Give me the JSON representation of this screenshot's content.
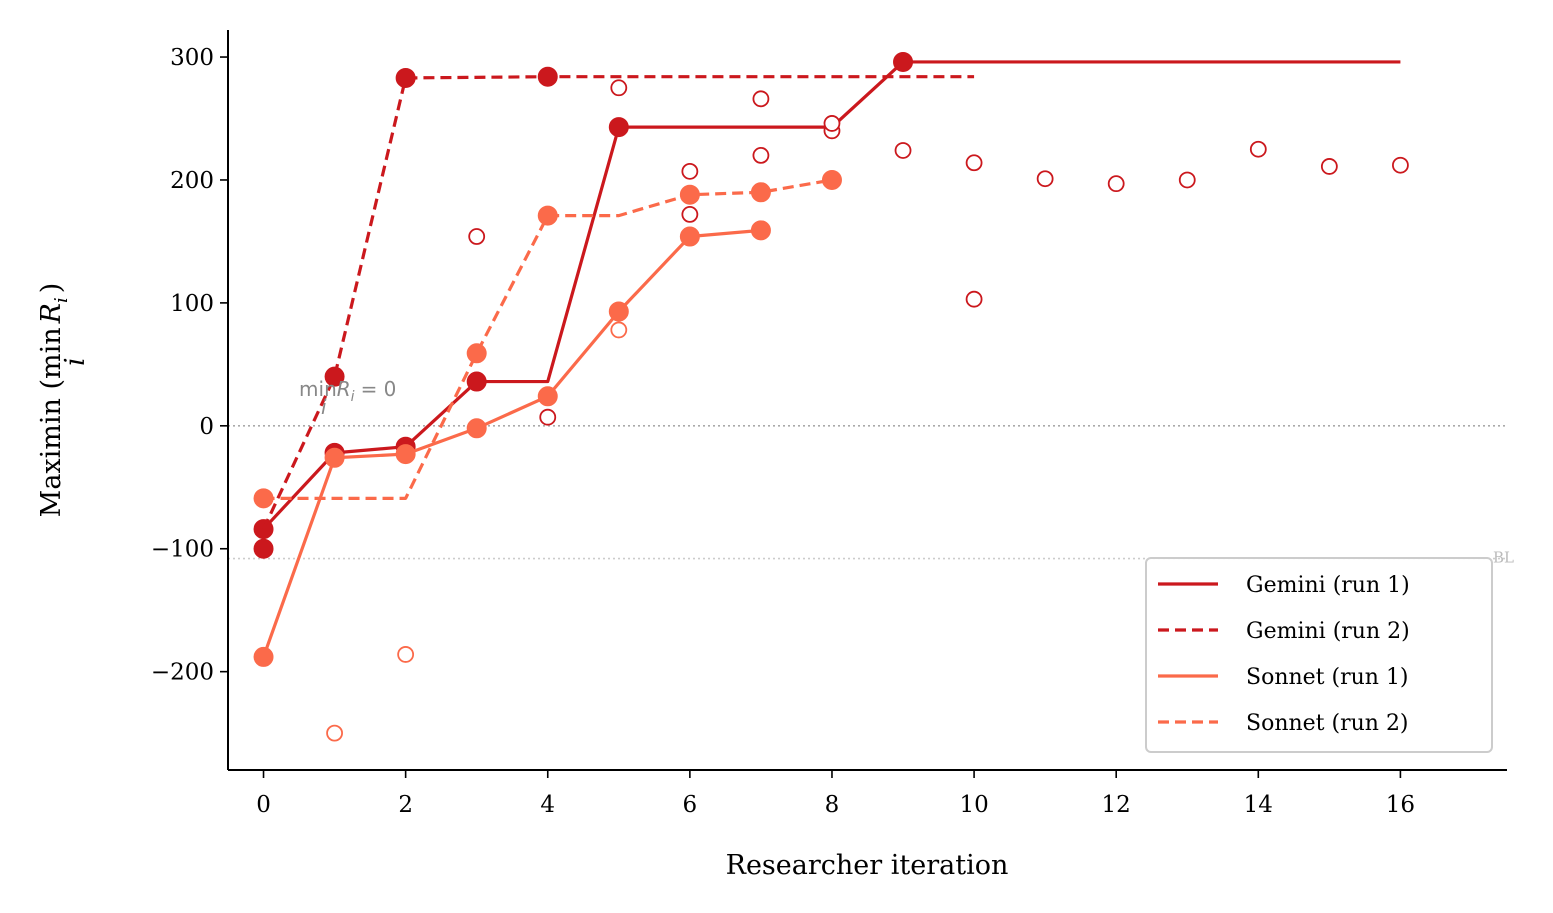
{
  "chart_data": {
    "type": "line",
    "xlabel": "Researcher iteration",
    "ylabel": "Maximin (min R_i)",
    "ylabel_main": "Maximin (min",
    "ylabel_var": "R",
    "ylabel_sub": "i",
    "ylabel_under": "i",
    "ylabel_close": ")",
    "xlim": [
      -0.5,
      17.5
    ],
    "ylim": [
      -280,
      322
    ],
    "xticks": [
      0,
      2,
      4,
      6,
      8,
      10,
      12,
      14,
      16
    ],
    "yticks": [
      -200,
      -100,
      0,
      100,
      200,
      300
    ],
    "grid": false,
    "legend_position": "lower-right",
    "reference_lines": [
      {
        "y": 0,
        "label_main": "min",
        "label_var": "R",
        "label_sub": "i",
        "label_under": "i",
        "label_eq": "= 0",
        "label_x": 0.5,
        "color": "#aaaaaa"
      },
      {
        "y": -108,
        "label": "BL",
        "color": "#cccccc"
      }
    ],
    "series": [
      {
        "name": "Gemini (run 1)",
        "color": "#cb181d",
        "dash": "solid",
        "best": [
          [
            0,
            -100
          ],
          [
            0,
            -84
          ],
          [
            1,
            -22
          ],
          [
            2,
            -17
          ],
          [
            3,
            36
          ],
          [
            4,
            36
          ],
          [
            5,
            243
          ],
          [
            6,
            243
          ],
          [
            7,
            243
          ],
          [
            8,
            243
          ],
          [
            9,
            296
          ],
          [
            16,
            296
          ]
        ],
        "filled": [
          [
            0,
            -100
          ],
          [
            0,
            -84
          ],
          [
            1,
            -22
          ],
          [
            2,
            -17
          ],
          [
            3,
            36
          ],
          [
            5,
            243
          ],
          [
            9,
            296
          ]
        ],
        "hollow": [
          [
            4,
            7
          ],
          [
            6,
            207
          ],
          [
            6,
            172
          ],
          [
            7,
            220
          ],
          [
            7,
            266
          ],
          [
            8,
            240
          ],
          [
            8,
            246
          ],
          [
            9,
            224
          ],
          [
            10,
            214
          ],
          [
            10,
            103
          ],
          [
            11,
            201
          ],
          [
            12,
            197
          ],
          [
            13,
            200
          ],
          [
            14,
            225
          ],
          [
            15,
            211
          ],
          [
            16,
            212
          ]
        ]
      },
      {
        "name": "Gemini (run 2)",
        "color": "#cb181d",
        "dash": "dashed",
        "best": [
          [
            0,
            -84
          ],
          [
            1,
            40
          ],
          [
            2,
            283
          ],
          [
            4,
            284
          ],
          [
            10,
            284
          ]
        ],
        "filled": [
          [
            1,
            40
          ],
          [
            2,
            283
          ],
          [
            4,
            284
          ]
        ],
        "hollow": [
          [
            3,
            154
          ],
          [
            5,
            275
          ]
        ]
      },
      {
        "name": "Sonnet (run 1)",
        "color": "#fb6a4a",
        "dash": "solid",
        "best": [
          [
            0,
            -188
          ],
          [
            1,
            -26
          ],
          [
            2,
            -23
          ],
          [
            3,
            -2
          ],
          [
            4,
            24
          ],
          [
            5,
            93
          ],
          [
            6,
            154
          ],
          [
            7,
            159
          ]
        ],
        "filled": [
          [
            0,
            -188
          ],
          [
            1,
            -26
          ],
          [
            2,
            -23
          ],
          [
            3,
            -2
          ],
          [
            4,
            24
          ],
          [
            5,
            93
          ],
          [
            6,
            154
          ],
          [
            7,
            159
          ]
        ],
        "hollow": [
          [
            1,
            -250
          ],
          [
            5,
            78
          ]
        ]
      },
      {
        "name": "Sonnet (run 2)",
        "color": "#fb6a4a",
        "dash": "dashed",
        "best": [
          [
            0,
            -59
          ],
          [
            2,
            -59
          ],
          [
            3,
            59
          ],
          [
            4,
            171
          ],
          [
            5,
            171
          ],
          [
            6,
            188
          ],
          [
            7,
            190
          ],
          [
            8,
            200
          ]
        ],
        "filled": [
          [
            0,
            -59
          ],
          [
            3,
            59
          ],
          [
            4,
            171
          ],
          [
            6,
            188
          ],
          [
            7,
            190
          ],
          [
            8,
            200
          ]
        ],
        "hollow": [
          [
            2,
            -186
          ]
        ]
      }
    ]
  }
}
